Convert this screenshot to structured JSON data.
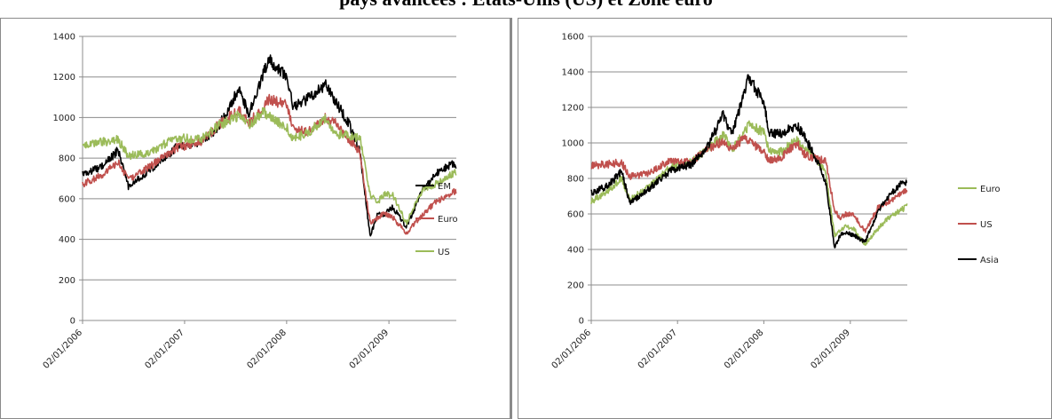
{
  "page": {
    "title": "pays avancées : Etats-Unis (US) et Zone euro"
  },
  "chart_data": [
    {
      "type": "line",
      "x_ticks": [
        "02/01/2006",
        "02/01/2007",
        "02/01/2008",
        "02/01/2009"
      ],
      "x_range": [
        "2006-01-02",
        "2009-08-31"
      ],
      "ylim": [
        0,
        1400
      ],
      "y_ticks": [
        0,
        200,
        400,
        600,
        800,
        1000,
        1200,
        1400
      ],
      "grid": true,
      "legend_position": "right",
      "series": [
        {
          "name": "EM",
          "color": "#000000",
          "points": [
            [
              "2006-01-02",
              720
            ],
            [
              "2006-03-15",
              760
            ],
            [
              "2006-05-10",
              840
            ],
            [
              "2006-06-15",
              660
            ],
            [
              "2006-09-01",
              740
            ],
            [
              "2006-12-01",
              850
            ],
            [
              "2007-03-01",
              880
            ],
            [
              "2007-05-01",
              950
            ],
            [
              "2007-07-15",
              1140
            ],
            [
              "2007-08-20",
              1020
            ],
            [
              "2007-10-30",
              1290
            ],
            [
              "2008-01-02",
              1200
            ],
            [
              "2008-01-25",
              1050
            ],
            [
              "2008-03-15",
              1090
            ],
            [
              "2008-05-20",
              1160
            ],
            [
              "2008-06-25",
              1080
            ],
            [
              "2008-08-15",
              960
            ],
            [
              "2008-09-20",
              830
            ],
            [
              "2008-10-27",
              410
            ],
            [
              "2008-11-20",
              520
            ],
            [
              "2008-12-15",
              520
            ],
            [
              "2009-01-15",
              560
            ],
            [
              "2009-03-05",
              460
            ],
            [
              "2009-05-01",
              640
            ],
            [
              "2009-06-15",
              720
            ],
            [
              "2009-08-15",
              770
            ],
            [
              "2009-08-31",
              750
            ]
          ]
        },
        {
          "name": "Euro",
          "color": "#c0504d",
          "points": [
            [
              "2006-01-02",
              670
            ],
            [
              "2006-03-15",
              720
            ],
            [
              "2006-05-10",
              780
            ],
            [
              "2006-06-15",
              690
            ],
            [
              "2006-09-01",
              760
            ],
            [
              "2006-12-01",
              850
            ],
            [
              "2007-03-01",
              880
            ],
            [
              "2007-05-01",
              960
            ],
            [
              "2007-07-15",
              1040
            ],
            [
              "2007-08-20",
              970
            ],
            [
              "2007-11-01",
              1090
            ],
            [
              "2008-01-02",
              1060
            ],
            [
              "2008-01-25",
              940
            ],
            [
              "2008-03-15",
              930
            ],
            [
              "2008-05-20",
              1000
            ],
            [
              "2008-06-25",
              970
            ],
            [
              "2008-08-15",
              890
            ],
            [
              "2008-09-20",
              830
            ],
            [
              "2008-10-27",
              480
            ],
            [
              "2008-11-20",
              500
            ],
            [
              "2008-12-15",
              530
            ],
            [
              "2009-01-15",
              510
            ],
            [
              "2009-03-05",
              430
            ],
            [
              "2009-05-01",
              520
            ],
            [
              "2009-06-15",
              580
            ],
            [
              "2009-08-15",
              630
            ],
            [
              "2009-08-31",
              640
            ]
          ]
        },
        {
          "name": "US",
          "color": "#9bbb59",
          "points": [
            [
              "2006-01-02",
              870
            ],
            [
              "2006-03-15",
              880
            ],
            [
              "2006-05-10",
              890
            ],
            [
              "2006-06-15",
              810
            ],
            [
              "2006-09-01",
              830
            ],
            [
              "2006-12-01",
              900
            ],
            [
              "2007-03-01",
              890
            ],
            [
              "2007-05-01",
              960
            ],
            [
              "2007-07-15",
              1010
            ],
            [
              "2007-08-20",
              960
            ],
            [
              "2007-10-09",
              1030
            ],
            [
              "2008-01-02",
              950
            ],
            [
              "2008-01-25",
              900
            ],
            [
              "2008-03-15",
              920
            ],
            [
              "2008-05-20",
              1000
            ],
            [
              "2008-06-25",
              920
            ],
            [
              "2008-08-15",
              910
            ],
            [
              "2008-09-20",
              900
            ],
            [
              "2008-10-27",
              620
            ],
            [
              "2008-11-20",
              580
            ],
            [
              "2008-12-15",
              620
            ],
            [
              "2009-01-15",
              620
            ],
            [
              "2009-03-05",
              480
            ],
            [
              "2009-05-01",
              640
            ],
            [
              "2009-06-15",
              670
            ],
            [
              "2009-08-15",
              720
            ],
            [
              "2009-08-31",
              730
            ]
          ]
        }
      ]
    },
    {
      "type": "line",
      "x_ticks": [
        "02/01/2006",
        "02/01/2007",
        "02/01/2008",
        "02/01/2009"
      ],
      "x_range": [
        "2006-01-02",
        "2009-08-31"
      ],
      "ylim": [
        0,
        1600
      ],
      "y_ticks": [
        0,
        200,
        400,
        600,
        800,
        1000,
        1200,
        1400,
        1600
      ],
      "grid": true,
      "legend_position": "right",
      "series": [
        {
          "name": "Euro",
          "color": "#9bbb59",
          "points": [
            [
              "2006-01-02",
              670
            ],
            [
              "2006-03-15",
              730
            ],
            [
              "2006-05-10",
              800
            ],
            [
              "2006-06-15",
              680
            ],
            [
              "2006-09-01",
              750
            ],
            [
              "2006-12-01",
              860
            ],
            [
              "2007-03-01",
              890
            ],
            [
              "2007-05-01",
              960
            ],
            [
              "2007-07-15",
              1050
            ],
            [
              "2007-08-20",
              960
            ],
            [
              "2007-11-01",
              1100
            ],
            [
              "2008-01-02",
              1060
            ],
            [
              "2008-01-25",
              950
            ],
            [
              "2008-03-15",
              950
            ],
            [
              "2008-05-20",
              1020
            ],
            [
              "2008-06-25",
              980
            ],
            [
              "2008-08-15",
              900
            ],
            [
              "2008-09-20",
              830
            ],
            [
              "2008-10-27",
              480
            ],
            [
              "2008-11-20",
              510
            ],
            [
              "2008-12-15",
              530
            ],
            [
              "2009-01-15",
              520
            ],
            [
              "2009-03-05",
              430
            ],
            [
              "2009-05-01",
              520
            ],
            [
              "2009-06-15",
              580
            ],
            [
              "2009-08-15",
              630
            ],
            [
              "2009-08-31",
              650
            ]
          ]
        },
        {
          "name": "US",
          "color": "#c0504d",
          "points": [
            [
              "2006-01-02",
              870
            ],
            [
              "2006-03-15",
              880
            ],
            [
              "2006-05-10",
              890
            ],
            [
              "2006-06-15",
              810
            ],
            [
              "2006-09-01",
              830
            ],
            [
              "2006-12-01",
              900
            ],
            [
              "2007-03-01",
              890
            ],
            [
              "2007-05-01",
              960
            ],
            [
              "2007-07-15",
              1010
            ],
            [
              "2007-08-20",
              960
            ],
            [
              "2007-10-09",
              1030
            ],
            [
              "2008-01-02",
              950
            ],
            [
              "2008-01-25",
              900
            ],
            [
              "2008-03-15",
              920
            ],
            [
              "2008-05-20",
              1000
            ],
            [
              "2008-06-25",
              930
            ],
            [
              "2008-08-15",
              910
            ],
            [
              "2008-09-20",
              900
            ],
            [
              "2008-10-27",
              620
            ],
            [
              "2008-11-20",
              580
            ],
            [
              "2008-12-15",
              600
            ],
            [
              "2009-01-15",
              600
            ],
            [
              "2009-03-05",
              500
            ],
            [
              "2009-05-01",
              640
            ],
            [
              "2009-06-15",
              670
            ],
            [
              "2009-08-15",
              720
            ],
            [
              "2009-08-31",
              730
            ]
          ]
        },
        {
          "name": "Asia",
          "color": "#000000",
          "points": [
            [
              "2006-01-02",
              720
            ],
            [
              "2006-03-15",
              760
            ],
            [
              "2006-05-10",
              840
            ],
            [
              "2006-06-15",
              660
            ],
            [
              "2006-09-01",
              740
            ],
            [
              "2006-12-01",
              840
            ],
            [
              "2007-03-01",
              880
            ],
            [
              "2007-05-01",
              960
            ],
            [
              "2007-07-15",
              1160
            ],
            [
              "2007-08-20",
              1040
            ],
            [
              "2007-10-30",
              1370
            ],
            [
              "2008-01-02",
              1230
            ],
            [
              "2008-01-25",
              1050
            ],
            [
              "2008-03-15",
              1050
            ],
            [
              "2008-05-20",
              1100
            ],
            [
              "2008-06-25",
              1030
            ],
            [
              "2008-08-15",
              900
            ],
            [
              "2008-09-20",
              780
            ],
            [
              "2008-10-27",
              410
            ],
            [
              "2008-11-20",
              480
            ],
            [
              "2008-12-15",
              500
            ],
            [
              "2009-01-15",
              480
            ],
            [
              "2009-03-05",
              440
            ],
            [
              "2009-05-01",
              620
            ],
            [
              "2009-06-15",
              700
            ],
            [
              "2009-08-15",
              790
            ],
            [
              "2009-08-31",
              770
            ]
          ]
        }
      ]
    }
  ]
}
